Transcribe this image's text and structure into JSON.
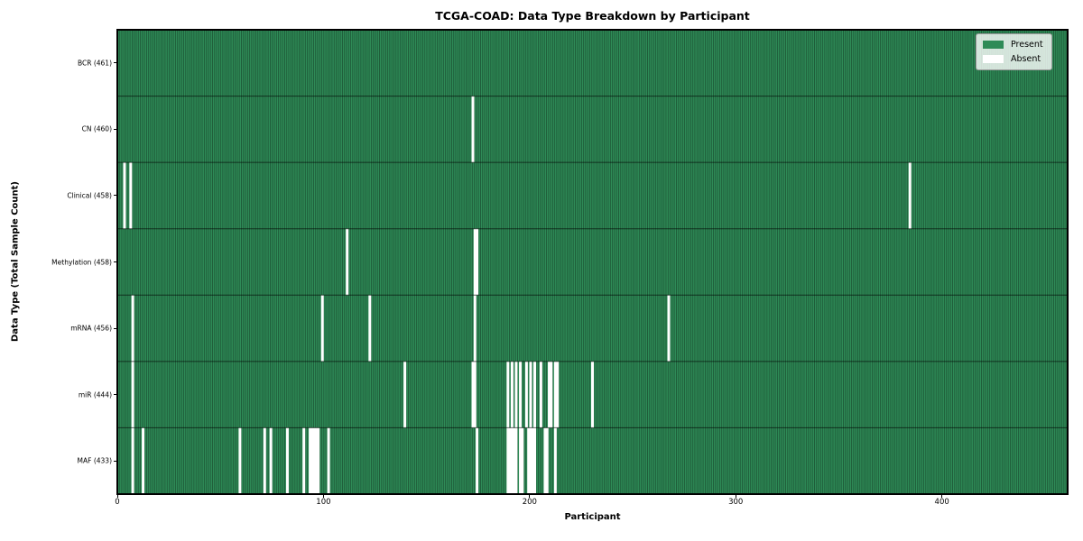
{
  "title": "TCGA-COAD: Data Type Breakdown by Participant",
  "xlabel": "Participant",
  "ylabel": "Data Type (Total Sample Count)",
  "legend": {
    "present_label": "Present",
    "absent_label": "Absent"
  },
  "colors": {
    "present": "#2e8b57",
    "absent": "#ffffff",
    "cell_edge": "rgba(0,0,0,0.42)",
    "row_separator": "rgba(0,0,0,0.6)",
    "spine": "#000000"
  },
  "chart_data": {
    "type": "heatmap",
    "x_ticks": [
      0,
      100,
      200,
      300,
      400
    ],
    "n_participants": 461,
    "legend_position": "upper right",
    "rows": [
      {
        "label": "BCR (461)",
        "name": "BCR",
        "total": 461,
        "absent": []
      },
      {
        "label": "CN (460)",
        "name": "CN",
        "total": 460,
        "absent": [
          172
        ]
      },
      {
        "label": "Clinical (458)",
        "name": "Clinical",
        "total": 458,
        "absent": [
          3,
          6,
          384
        ]
      },
      {
        "label": "Methylation (458)",
        "name": "Methylation",
        "total": 458,
        "absent": [
          111,
          173,
          174
        ]
      },
      {
        "label": "mRNA (456)",
        "name": "mRNA",
        "total": 456,
        "absent": [
          7,
          99,
          122,
          173,
          267
        ]
      },
      {
        "label": "miR (444)",
        "name": "miR",
        "total": 444,
        "absent": [
          7,
          139,
          172,
          173,
          189,
          191,
          193,
          195,
          198,
          200,
          202,
          205,
          209,
          210,
          212,
          213,
          230
        ]
      },
      {
        "label": "MAF (433)",
        "name": "MAF",
        "total": 433,
        "absent": [
          7,
          12,
          59,
          71,
          74,
          82,
          90,
          93,
          94,
          95,
          96,
          97,
          102,
          174,
          189,
          190,
          191,
          192,
          193,
          195,
          196,
          199,
          200,
          201,
          202,
          207,
          208,
          212
        ]
      }
    ]
  }
}
